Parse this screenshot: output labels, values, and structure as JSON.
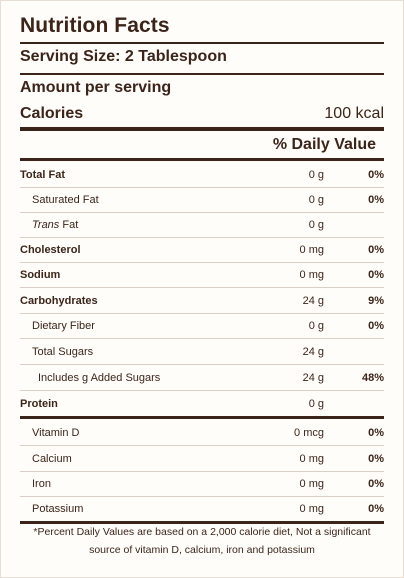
{
  "title": "Nutrition Facts",
  "serving_size": "Serving Size: 2 Tablespoon",
  "amount_per_serving": "Amount per serving",
  "calories": {
    "label": "Calories",
    "value": "100 kcal"
  },
  "daily_value_header": "% Daily Value",
  "rows": [
    {
      "name": "Total Fat",
      "amount": "0 g",
      "dv": "0%"
    },
    {
      "name": "Saturated Fat",
      "amount": "0 g",
      "dv": "0%"
    },
    {
      "name_italic": "Trans",
      "name_rest": " Fat",
      "amount": "0 g",
      "dv": ""
    },
    {
      "name": "Cholesterol",
      "amount": "0 mg",
      "dv": "0%"
    },
    {
      "name": "Sodium",
      "amount": "0 mg",
      "dv": "0%"
    },
    {
      "name": "Carbohydrates",
      "amount": "24 g",
      "dv": "9%"
    },
    {
      "name": "Dietary Fiber",
      "amount": "0 g",
      "dv": "0%"
    },
    {
      "name": "Total Sugars",
      "amount": "24 g",
      "dv": ""
    },
    {
      "name": "Includes g Added Sugars",
      "amount": "24 g",
      "dv": "48%"
    },
    {
      "name": "Protein",
      "amount": "0 g",
      "dv": ""
    },
    {
      "name": "Vitamin D",
      "amount": "0 mcg",
      "dv": "0%"
    },
    {
      "name": "Calcium",
      "amount": "0 mg",
      "dv": "0%"
    },
    {
      "name": "Iron",
      "amount": "0 mg",
      "dv": "0%"
    },
    {
      "name": "Potassium",
      "amount": "0 mg",
      "dv": "0%"
    }
  ],
  "footnote": "*Percent Daily Values are based on a 2,000 calorie diet, Not a significant source of vitamin D, calcium, iron and potassium",
  "colors": {
    "text": "#3b2419",
    "rule": "#3b2419",
    "divider": "#d9cfc5",
    "background": "#fffdfa"
  }
}
